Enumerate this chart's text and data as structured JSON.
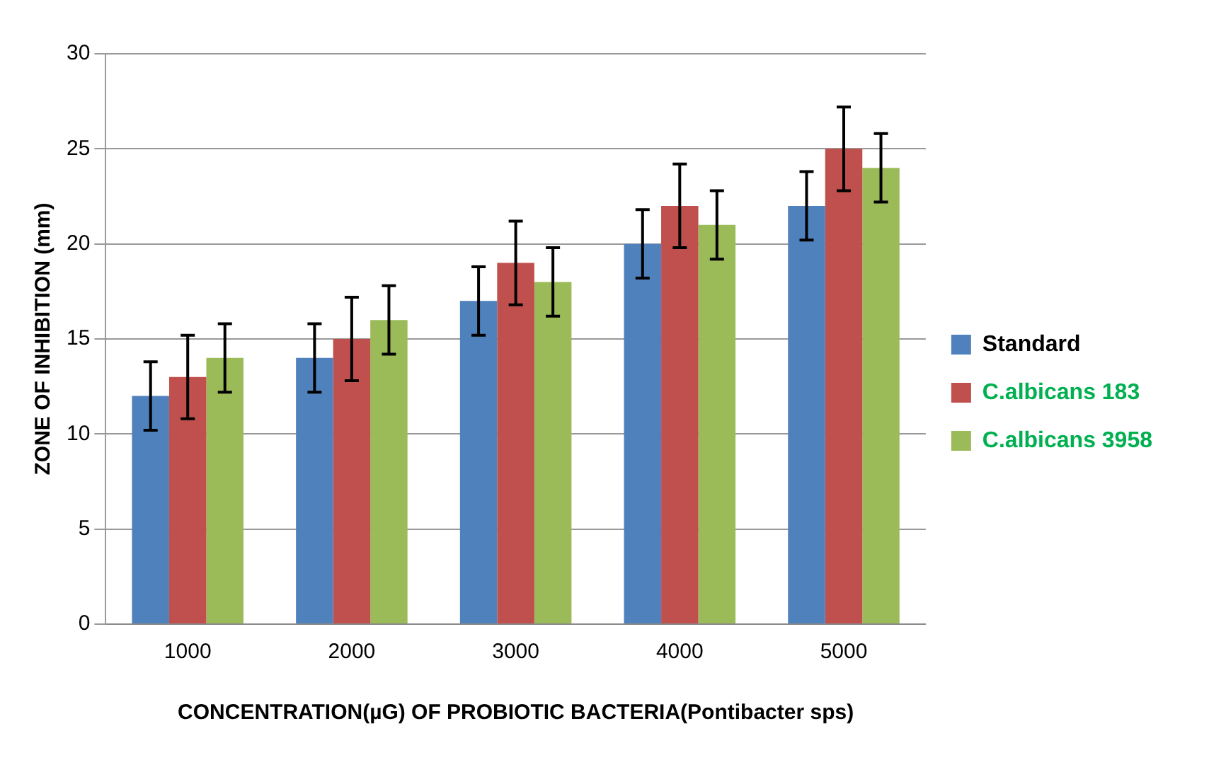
{
  "chart_data": {
    "type": "bar",
    "xlabel": "CONCENTRATION(µG) OF PROBIOTIC BACTERIA(Pontibacter sps)",
    "ylabel": "ZONE OF INHIBITION (mm)",
    "categories": [
      "1000",
      "2000",
      "3000",
      "4000",
      "5000"
    ],
    "series": [
      {
        "name": "Standard",
        "color": "#4f81bd",
        "values": [
          12,
          14,
          17,
          20,
          22
        ],
        "errors": [
          1.8,
          1.8,
          1.8,
          1.8,
          1.8
        ]
      },
      {
        "name": "C.albicans 183",
        "color": "#c0504d",
        "values": [
          13,
          15,
          19,
          22,
          25
        ],
        "errors": [
          2.2,
          2.2,
          2.2,
          2.2,
          2.2
        ]
      },
      {
        "name": "C.albicans 3958",
        "color": "#9bbb59",
        "values": [
          14,
          16,
          18,
          21,
          24
        ],
        "errors": [
          1.8,
          1.8,
          1.8,
          1.8,
          1.8
        ]
      }
    ],
    "ylim": [
      0,
      30
    ],
    "yticks": [
      0,
      5,
      10,
      15,
      20,
      25,
      30
    ],
    "grid": "y",
    "legend": "right"
  }
}
